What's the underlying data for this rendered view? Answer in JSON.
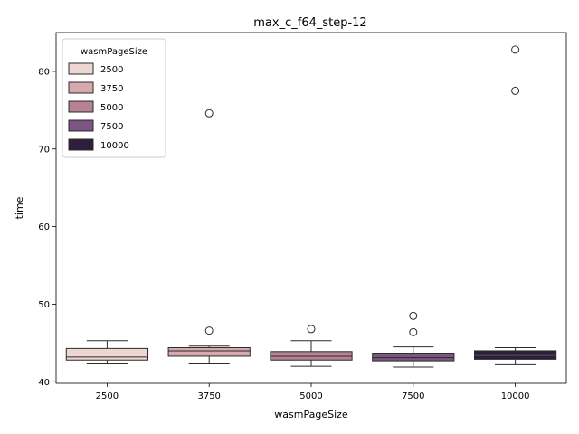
{
  "chart_data": {
    "type": "box",
    "title": "max_c_f64_step-12",
    "xlabel": "wasmPageSize",
    "ylabel": "time",
    "ylim": [
      39.8,
      85.0
    ],
    "yticks": [
      40,
      50,
      60,
      70,
      80
    ],
    "categories": [
      "2500",
      "3750",
      "5000",
      "7500",
      "10000"
    ],
    "grid": false,
    "legend": {
      "title": "wasmPageSize",
      "placement": "top-left",
      "entries": [
        "2500",
        "3750",
        "5000",
        "7500",
        "10000"
      ]
    },
    "colors": [
      "#eed6d3",
      "#d5a9ad",
      "#b78394",
      "#7d5582",
      "#2e1e3b"
    ],
    "boxes": [
      {
        "category": "2500",
        "whisker_low": 42.3,
        "q1": 42.8,
        "median": 43.2,
        "q3": 44.3,
        "whisker_high": 45.3,
        "outliers": []
      },
      {
        "category": "3750",
        "whisker_low": 42.3,
        "q1": 43.3,
        "median": 44.0,
        "q3": 44.4,
        "whisker_high": 44.6,
        "outliers": [
          74.6,
          46.6
        ]
      },
      {
        "category": "5000",
        "whisker_low": 42.0,
        "q1": 42.8,
        "median": 43.3,
        "q3": 43.9,
        "whisker_high": 45.3,
        "outliers": [
          46.8
        ]
      },
      {
        "category": "7500",
        "whisker_low": 41.9,
        "q1": 42.7,
        "median": 43.1,
        "q3": 43.7,
        "whisker_high": 44.5,
        "outliers": [
          48.5,
          46.4
        ]
      },
      {
        "category": "10000",
        "whisker_low": 42.2,
        "q1": 42.9,
        "median": 43.4,
        "q3": 44.0,
        "whisker_high": 44.4,
        "outliers": [
          82.8,
          77.5
        ]
      }
    ]
  }
}
